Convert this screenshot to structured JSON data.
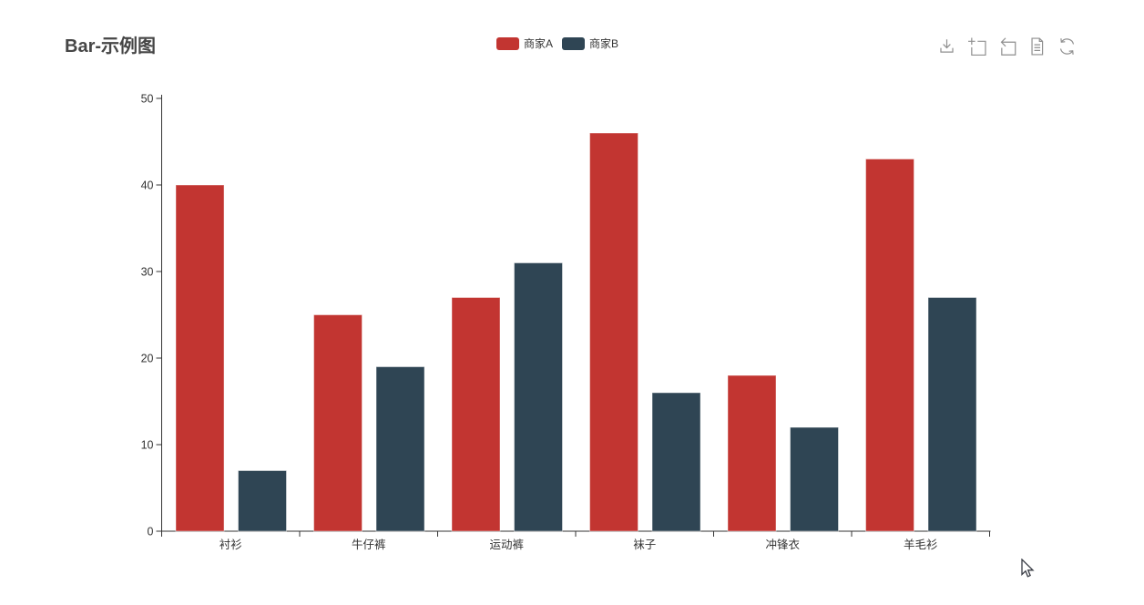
{
  "title": "Bar-示例图",
  "legend": {
    "items": [
      {
        "label": "商家A",
        "color": "#c23531"
      },
      {
        "label": "商家B",
        "color": "#2f4554"
      }
    ]
  },
  "toolbox": {
    "icons": [
      "save-as-image",
      "data-zoom",
      "zoom-restore",
      "data-view",
      "refresh"
    ]
  },
  "colors": {
    "accent_red": "#c23531",
    "accent_slate": "#2f4554",
    "axis": "#333333",
    "title_text": "#464646",
    "toolbox_icon": "#8f8f8f"
  },
  "chart_data": {
    "type": "bar",
    "title": "Bar-示例图",
    "categories": [
      "衬衫",
      "牛仔裤",
      "运动裤",
      "袜子",
      "冲锋衣",
      "羊毛衫"
    ],
    "series": [
      {
        "name": "商家A",
        "color": "#c23531",
        "values": [
          40,
          25,
          27,
          46,
          18,
          43
        ]
      },
      {
        "name": "商家B",
        "color": "#2f4554",
        "values": [
          7,
          19,
          31,
          16,
          12,
          27
        ]
      }
    ],
    "xlabel": "",
    "ylabel": "",
    "ylim": [
      0,
      50
    ],
    "yticks": [
      0,
      10,
      20,
      30,
      40,
      50
    ],
    "grid": false,
    "legend_position": "top-center"
  }
}
